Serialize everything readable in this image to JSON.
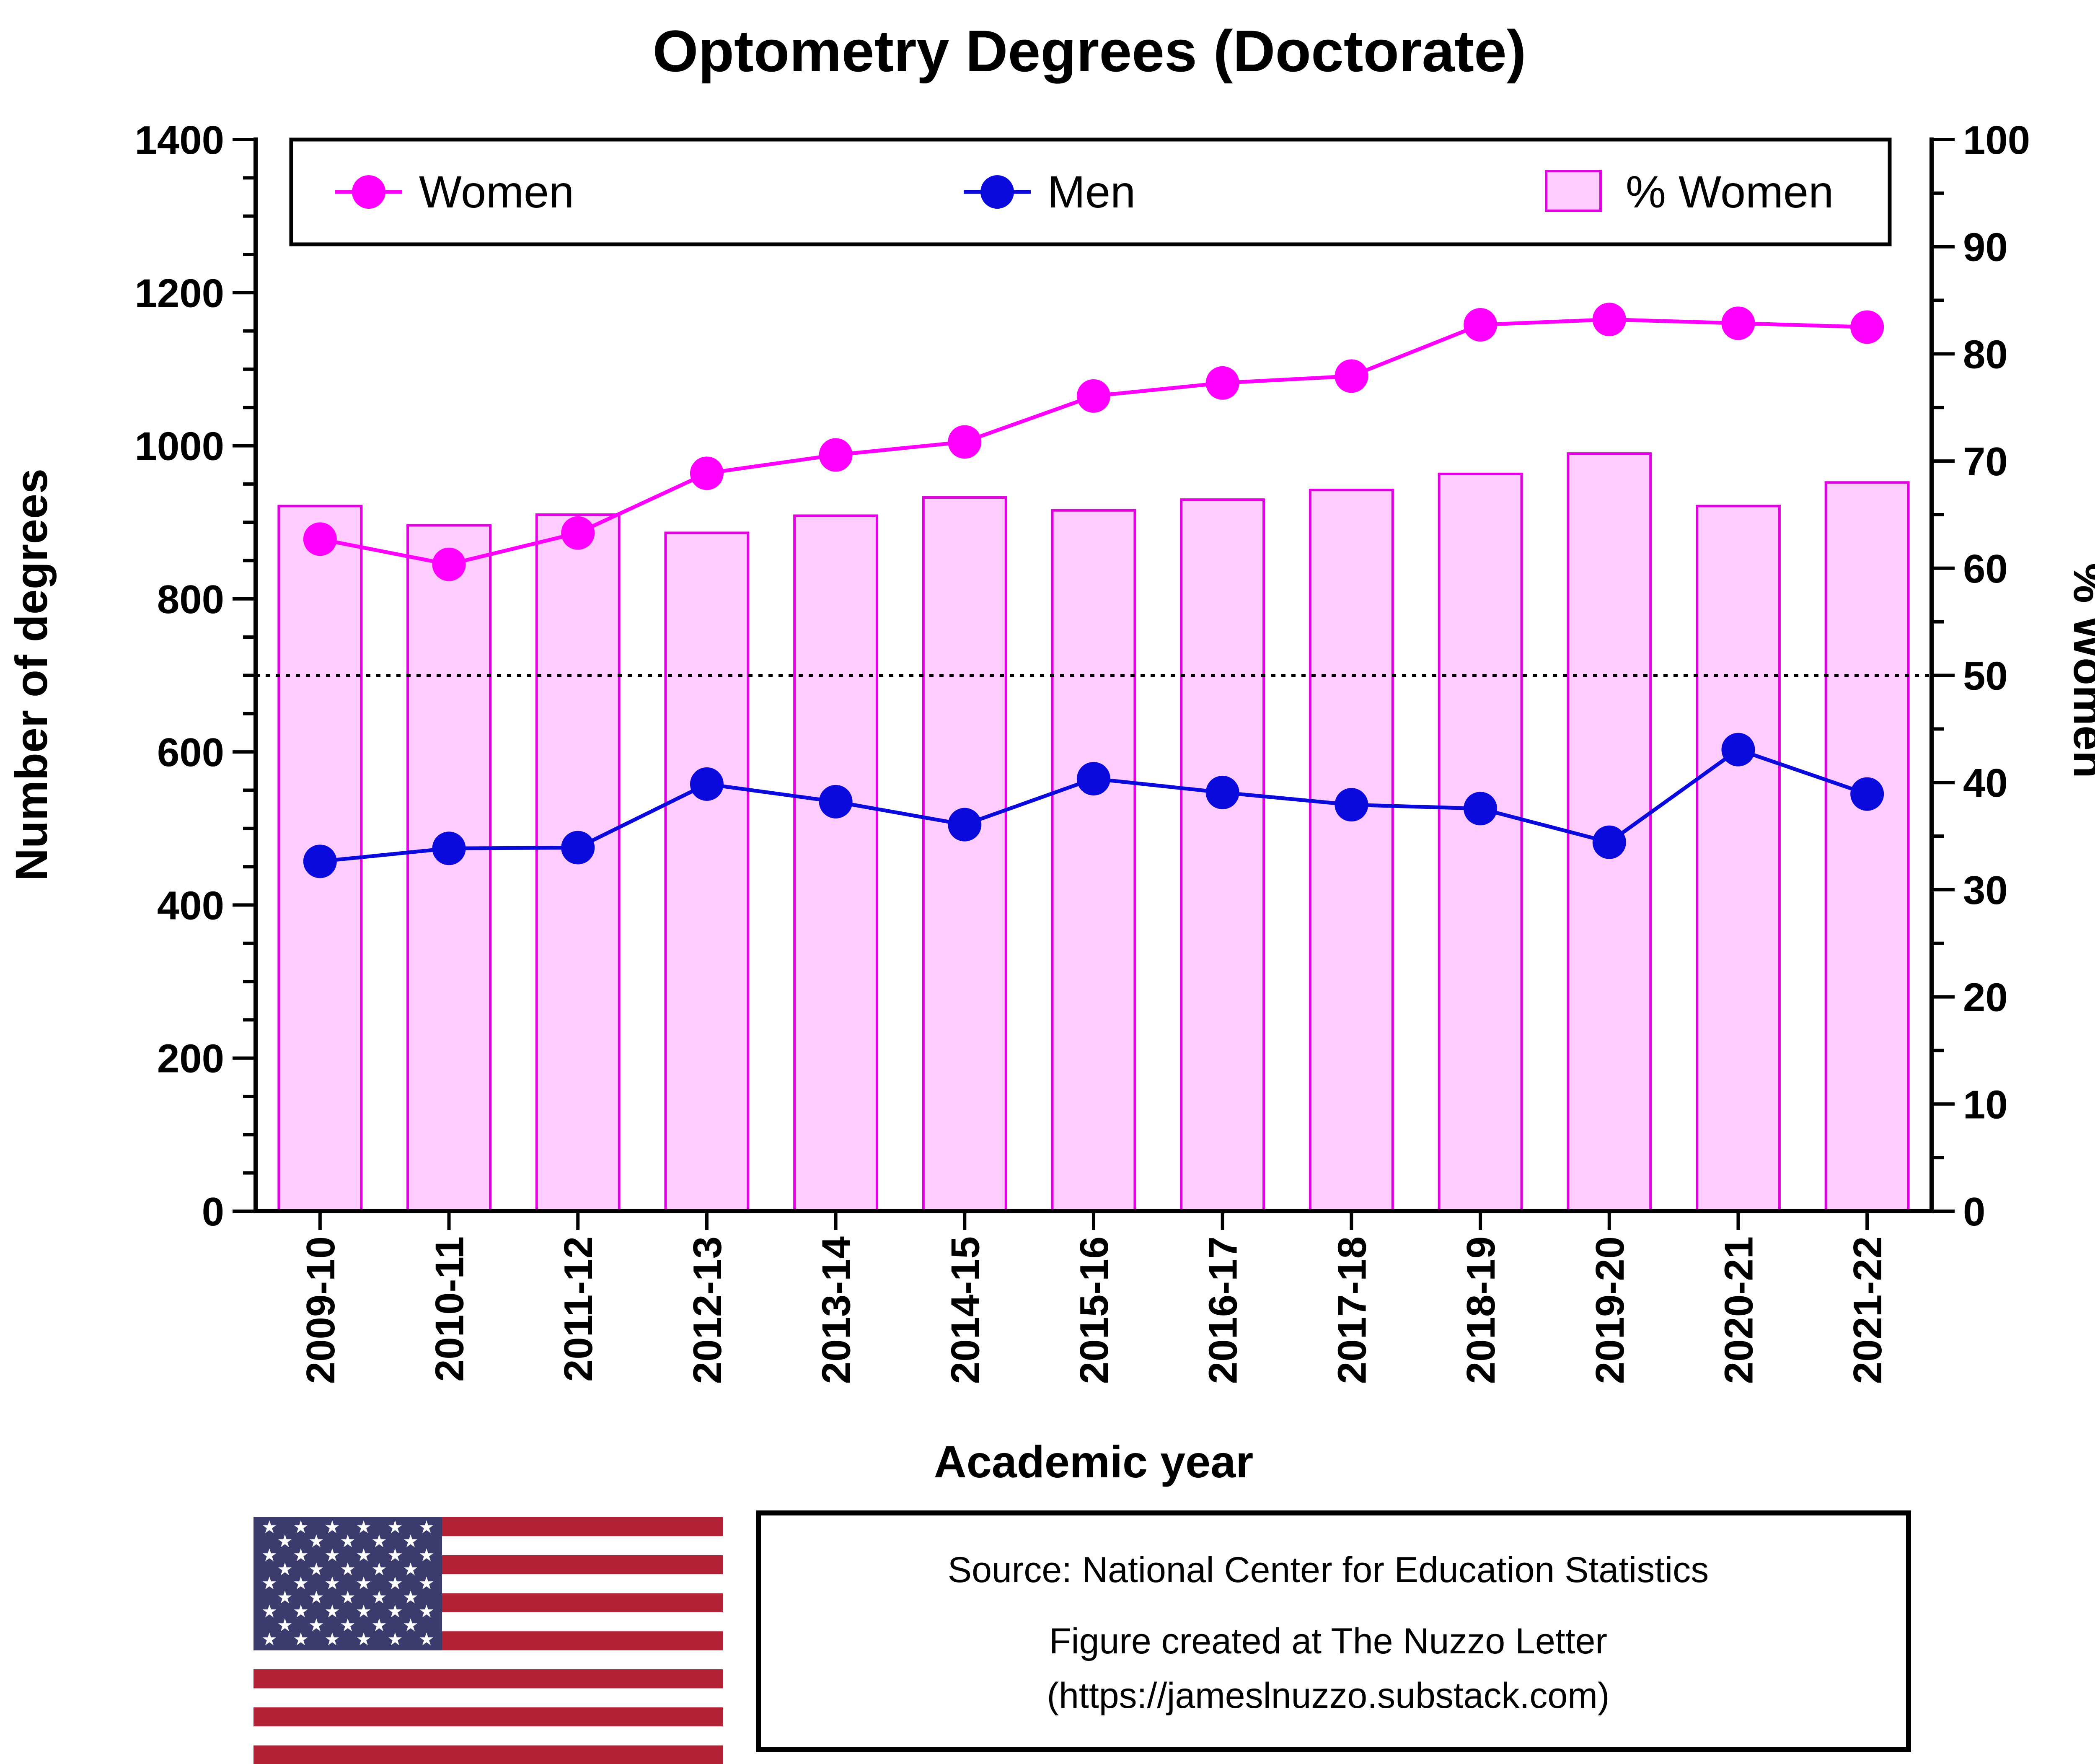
{
  "chart_data": {
    "type": "bar",
    "title": "Optometry Degrees (Doctorate)",
    "xlabel": "Academic year",
    "ylabel": "Number of degrees",
    "y2label": "% Women",
    "categories": [
      "2009-10",
      "2010-11",
      "2011-12",
      "2012-13",
      "2013-14",
      "2014-15",
      "2015-16",
      "2016-17",
      "2017-18",
      "2018-19",
      "2019-20",
      "2020-21",
      "2021-22"
    ],
    "ylim": [
      0,
      1400
    ],
    "y2lim": [
      0,
      100
    ],
    "yticks": [
      "0",
      "200",
      "400",
      "600",
      "800",
      "1000",
      "1200",
      "1400"
    ],
    "y2ticks": [
      "0",
      "10",
      "20",
      "30",
      "40",
      "50",
      "60",
      "70",
      "80",
      "90",
      "100"
    ],
    "reference_line": 50,
    "legend_placement": "top",
    "series": [
      {
        "name": "Women",
        "type": "line",
        "axis": "left",
        "color": "#ff00ff",
        "values": [
          878,
          845,
          886,
          964,
          988,
          1005,
          1065,
          1082,
          1091,
          1158,
          1165,
          1160,
          1155
        ]
      },
      {
        "name": "Men",
        "type": "line",
        "axis": "left",
        "color": "#0a0adc",
        "values": [
          457,
          474,
          475,
          558,
          535,
          505,
          565,
          547,
          531,
          526,
          482,
          603,
          545
        ]
      },
      {
        "name": "% Women",
        "type": "bar",
        "axis": "right",
        "color": "#ffccff",
        "edge_color": "#e000e0",
        "values": [
          65.8,
          64.0,
          65.0,
          63.3,
          64.9,
          66.6,
          65.4,
          66.4,
          67.3,
          68.8,
          70.7,
          65.8,
          68.0
        ]
      }
    ]
  },
  "source": {
    "line1": "Source: National Center for Education Statistics",
    "line2": "Figure created at The Nuzzo Letter",
    "line3": "(https://jameslnuzzo.substack.com)"
  },
  "flag": {
    "icon": "us-flag-icon",
    "stripe_red": "#b22234",
    "canton_blue": "#3c3b6e"
  }
}
